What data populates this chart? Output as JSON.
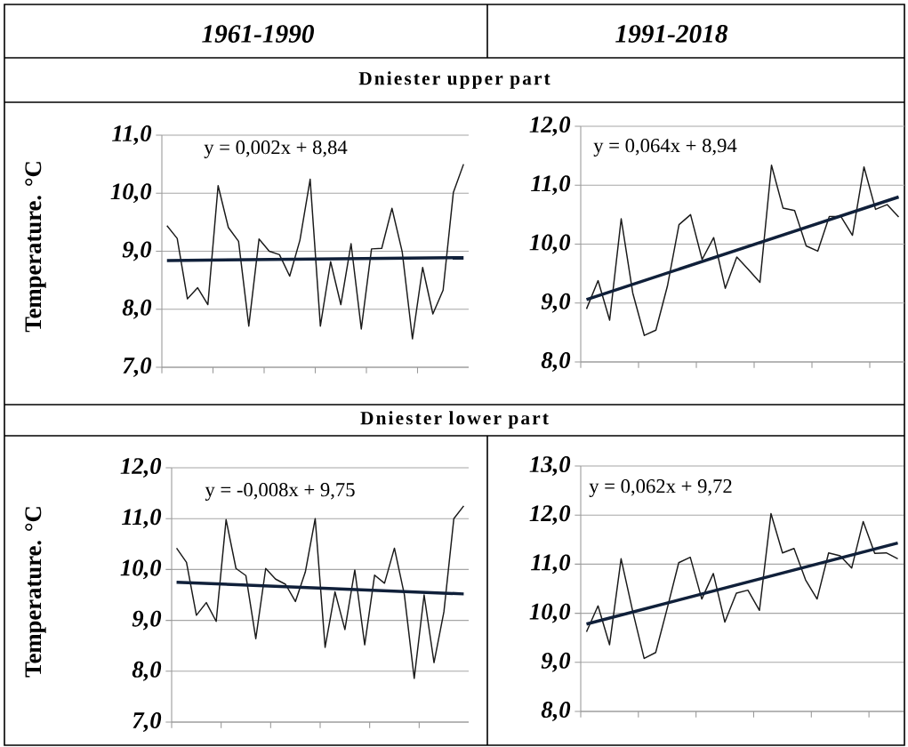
{
  "chart_data": [
    {
      "type": "line",
      "title": "1961-1990",
      "subtitle": "Dniester upper part",
      "ylabel": "Temperature. °C",
      "annotations": [
        "y = 0,002x + 8,84"
      ],
      "ylim": [
        7,
        11
      ],
      "categories": [
        null,
        null,
        null,
        null,
        null,
        null,
        null,
        null,
        null,
        null,
        null,
        null,
        null,
        null,
        null,
        null,
        null,
        null,
        null,
        null,
        null,
        null,
        null,
        null,
        null,
        null,
        null,
        null,
        null,
        null
      ],
      "yticks": [
        {
          "value": 7,
          "label": "7,0"
        },
        {
          "value": 8,
          "label": "8,0"
        },
        {
          "value": 9,
          "label": "9,0"
        },
        {
          "value": 10,
          "label": "10,0"
        },
        {
          "value": 11,
          "label": "11,0"
        }
      ],
      "grid": "y",
      "marker": "none",
      "series": [
        {
          "color": "#1a1a1a",
          "values": [
            9.44,
            9.22,
            8.18,
            8.37,
            8.08,
            10.13,
            9.41,
            9.17,
            7.71,
            9.21,
            9.0,
            8.94,
            8.57,
            9.19,
            10.24,
            7.71,
            8.82,
            8.08,
            9.13,
            7.66,
            9.04,
            9.05,
            9.74,
            8.99,
            7.49,
            8.72,
            7.92,
            8.33,
            10.01,
            10.5
          ]
        },
        {
          "type": "line",
          "color": "#10203a",
          "values": [
            8.84,
            null,
            null,
            null,
            null,
            null,
            null,
            null,
            null,
            null,
            null,
            null,
            null,
            null,
            null,
            null,
            null,
            null,
            null,
            null,
            null,
            null,
            null,
            null,
            null,
            null,
            null,
            null,
            null,
            8.89
          ]
        }
      ]
    },
    {
      "type": "line",
      "title": "1991-2018",
      "annotations": [
        "y = 0,064x + 8,94"
      ],
      "ylim": [
        8,
        12
      ],
      "categories": [
        null,
        null,
        null,
        null,
        null,
        null,
        null,
        null,
        null,
        null,
        null,
        null,
        null,
        null,
        null,
        null,
        null,
        null,
        null,
        null,
        null,
        null,
        null,
        null,
        null,
        null,
        null,
        null
      ],
      "yticks": [
        {
          "value": 8,
          "label": "8,0"
        },
        {
          "value": 9,
          "label": "9,0"
        },
        {
          "value": 10,
          "label": "10,0"
        },
        {
          "value": 11,
          "label": "11,0"
        },
        {
          "value": 12,
          "label": "12,0"
        }
      ],
      "grid": "y",
      "marker": "none",
      "series": [
        {
          "color": "#1a1a1a",
          "values": [
            8.9,
            9.38,
            8.71,
            10.43,
            9.17,
            8.45,
            8.54,
            9.29,
            10.33,
            10.5,
            9.74,
            10.11,
            9.25,
            9.78,
            9.57,
            9.35,
            11.34,
            10.61,
            10.57,
            9.97,
            9.88,
            10.47,
            10.47,
            10.15,
            11.31,
            10.59,
            10.67,
            10.46
          ]
        },
        {
          "type": "line",
          "color": "#10203a",
          "values": [
            9.06,
            null,
            null,
            null,
            null,
            null,
            null,
            null,
            null,
            null,
            null,
            null,
            null,
            null,
            null,
            null,
            null,
            null,
            null,
            null,
            null,
            null,
            null,
            null,
            null,
            null,
            null,
            10.8
          ]
        }
      ]
    },
    {
      "type": "line",
      "subtitle": "Dniester lower part",
      "ylabel": "Temperature. °C",
      "annotations": [
        "y = -0,008x + 9,75"
      ],
      "ylim": [
        7,
        12
      ],
      "categories": [
        null,
        null,
        null,
        null,
        null,
        null,
        null,
        null,
        null,
        null,
        null,
        null,
        null,
        null,
        null,
        null,
        null,
        null,
        null,
        null,
        null,
        null,
        null,
        null,
        null,
        null,
        null,
        null,
        null,
        null
      ],
      "yticks": [
        {
          "value": 7,
          "label": "7,0"
        },
        {
          "value": 8,
          "label": "8,0"
        },
        {
          "value": 9,
          "label": "9,0"
        },
        {
          "value": 10,
          "label": "10,0"
        },
        {
          "value": 11,
          "label": "11,0"
        },
        {
          "value": 12,
          "label": "12,0"
        }
      ],
      "grid": "y",
      "marker": "none",
      "series": [
        {
          "color": "#1a1a1a",
          "values": [
            10.42,
            10.14,
            9.1,
            9.35,
            8.98,
            10.98,
            10.02,
            9.88,
            8.64,
            10.02,
            9.81,
            9.71,
            9.37,
            9.95,
            11.0,
            8.47,
            9.56,
            8.82,
            9.99,
            8.52,
            9.89,
            9.73,
            10.42,
            9.51,
            7.86,
            9.5,
            8.17,
            9.17,
            11.0,
            11.25
          ]
        },
        {
          "type": "line",
          "color": "#10203a",
          "values": [
            9.75,
            null,
            null,
            null,
            null,
            null,
            null,
            null,
            null,
            null,
            null,
            null,
            null,
            null,
            null,
            null,
            null,
            null,
            null,
            null,
            null,
            null,
            null,
            null,
            null,
            null,
            null,
            null,
            null,
            9.52
          ]
        }
      ]
    },
    {
      "type": "line",
      "annotations": [
        "y = 0,062x + 9,72"
      ],
      "ylim": [
        8,
        13
      ],
      "categories": [
        null,
        null,
        null,
        null,
        null,
        null,
        null,
        null,
        null,
        null,
        null,
        null,
        null,
        null,
        null,
        null,
        null,
        null,
        null,
        null,
        null,
        null,
        null,
        null,
        null,
        null,
        null,
        null
      ],
      "yticks": [
        {
          "value": 8,
          "label": "8,0"
        },
        {
          "value": 9,
          "label": "9,0"
        },
        {
          "value": 10,
          "label": "10,0"
        },
        {
          "value": 11,
          "label": "11,0"
        },
        {
          "value": 12,
          "label": "12,0"
        },
        {
          "value": 13,
          "label": "13,0"
        }
      ],
      "grid": "y",
      "marker": "none",
      "series": [
        {
          "color": "#1a1a1a",
          "values": [
            9.62,
            10.15,
            9.36,
            11.11,
            10.05,
            9.08,
            9.2,
            10.1,
            11.03,
            11.14,
            10.29,
            10.81,
            9.82,
            10.41,
            10.47,
            10.06,
            12.03,
            11.23,
            11.32,
            10.68,
            10.29,
            11.23,
            11.17,
            10.92,
            11.87,
            11.22,
            11.23,
            11.11
          ]
        },
        {
          "type": "line",
          "color": "#10203a",
          "values": [
            9.78,
            null,
            null,
            null,
            null,
            null,
            null,
            null,
            null,
            null,
            null,
            null,
            null,
            null,
            null,
            null,
            null,
            null,
            null,
            null,
            null,
            null,
            null,
            null,
            null,
            null,
            null,
            11.43
          ]
        }
      ]
    }
  ]
}
